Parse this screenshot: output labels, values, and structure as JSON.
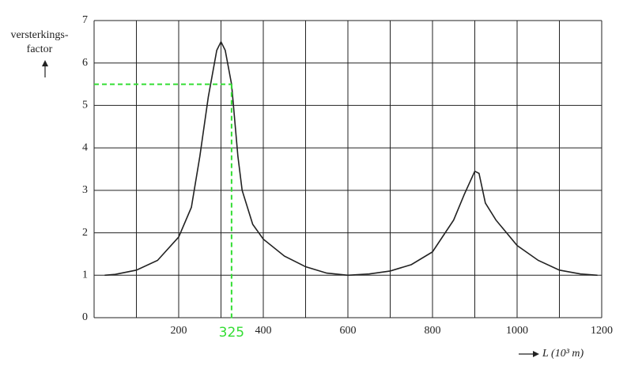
{
  "chart_data": {
    "type": "line",
    "y_label": [
      "versterkings-",
      "factor"
    ],
    "x_label": "L (10³ m)",
    "x": [
      25,
      50,
      100,
      150,
      200,
      230,
      250,
      270,
      290,
      300,
      310,
      325,
      340,
      350,
      375,
      400,
      450,
      500,
      550,
      600,
      650,
      700,
      750,
      800,
      850,
      875,
      900,
      910,
      925,
      950,
      1000,
      1050,
      1100,
      1150,
      1190
    ],
    "values": [
      1.0,
      1.02,
      1.12,
      1.35,
      1.9,
      2.6,
      3.8,
      5.2,
      6.3,
      6.5,
      6.3,
      5.5,
      3.8,
      3.0,
      2.2,
      1.85,
      1.45,
      1.2,
      1.05,
      1.0,
      1.03,
      1.1,
      1.25,
      1.55,
      2.3,
      2.9,
      3.45,
      3.4,
      2.7,
      2.3,
      1.7,
      1.35,
      1.12,
      1.03,
      1.0
    ],
    "color": "#222222",
    "xlim": [
      0,
      1200
    ],
    "ylim": [
      0,
      7
    ],
    "xticks": [
      200,
      400,
      600,
      800,
      1000,
      1200
    ],
    "yticks": [
      0,
      1,
      2,
      3,
      4,
      5,
      6,
      7
    ],
    "xgrid": [
      0,
      100,
      200,
      300,
      400,
      500,
      600,
      700,
      800,
      900,
      1000,
      1100,
      1200
    ],
    "grid": true,
    "marker": {
      "x": 325,
      "y": 5.5,
      "color": "#33dd33"
    }
  }
}
